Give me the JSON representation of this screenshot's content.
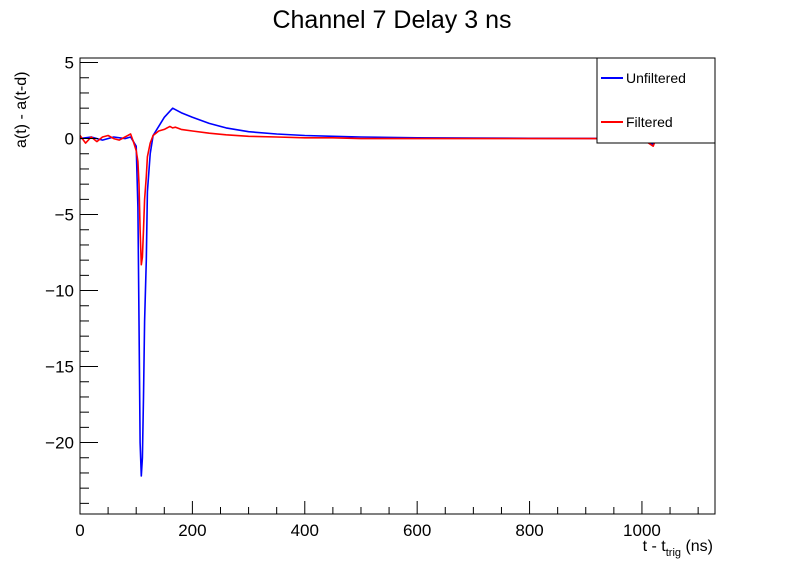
{
  "chart_data": {
    "type": "line",
    "title": "Channel 7 Delay 3 ns",
    "xlabel": {
      "main": "t - t",
      "sub": "trig",
      "unit": " (ns)"
    },
    "ylabel": "a(t) - a(t-d)",
    "xlim": [
      0,
      1130
    ],
    "ylim": [
      -24.7,
      5.3
    ],
    "x_major_ticks": [
      0,
      200,
      400,
      600,
      800,
      1000
    ],
    "x_minor_step": 50,
    "y_major_ticks": [
      5,
      0,
      -5,
      -10,
      -15,
      -20
    ],
    "y_minor_step": 1,
    "grid": false,
    "legend_position": "top-right",
    "series": [
      {
        "name": "Unfiltered",
        "color": "#0000ff",
        "x": [
          0,
          20,
          40,
          60,
          80,
          90,
          95,
          100,
          103,
          105,
          107,
          109,
          111,
          113,
          115,
          118,
          120,
          125,
          130,
          140,
          150,
          160,
          165,
          170,
          180,
          200,
          230,
          260,
          300,
          350,
          400,
          450,
          500,
          600,
          700,
          800,
          900,
          1000,
          1020,
          1025,
          1050,
          1130
        ],
        "y": [
          0,
          0.1,
          -0.1,
          0.1,
          0,
          0.1,
          -0.2,
          -0.5,
          -4.5,
          -12,
          -20,
          -22.2,
          -21,
          -17,
          -12,
          -8,
          -3.5,
          -1,
          0.2,
          0.8,
          1.4,
          1.8,
          2.0,
          1.9,
          1.7,
          1.4,
          1.0,
          0.7,
          0.45,
          0.3,
          0.2,
          0.15,
          0.1,
          0.05,
          0.03,
          0.02,
          0.01,
          0,
          -0.4,
          0,
          0,
          0
        ]
      },
      {
        "name": "Filtered",
        "color": "#ff0000",
        "x": [
          0,
          10,
          20,
          30,
          40,
          50,
          60,
          70,
          80,
          90,
          95,
          100,
          103,
          105,
          107,
          109,
          111,
          113,
          115,
          118,
          120,
          125,
          130,
          140,
          150,
          160,
          165,
          170,
          180,
          200,
          230,
          260,
          300,
          350,
          400,
          450,
          500,
          600,
          700,
          800,
          900,
          1000,
          1020,
          1025,
          1050,
          1130
        ],
        "y": [
          0.2,
          -0.3,
          0.1,
          -0.2,
          0.1,
          0.2,
          0,
          -0.1,
          0.1,
          0.3,
          -0.2,
          -0.8,
          -1.5,
          -3,
          -6,
          -8.3,
          -7.8,
          -6,
          -4,
          -2.5,
          -1.2,
          -0.3,
          0.2,
          0.5,
          0.6,
          0.8,
          0.7,
          0.75,
          0.6,
          0.5,
          0.35,
          0.25,
          0.15,
          0.1,
          0.05,
          0.05,
          0.0,
          0.0,
          0.0,
          0.0,
          0.0,
          0.0,
          -0.5,
          0.0,
          0.0,
          0.0
        ]
      }
    ]
  }
}
